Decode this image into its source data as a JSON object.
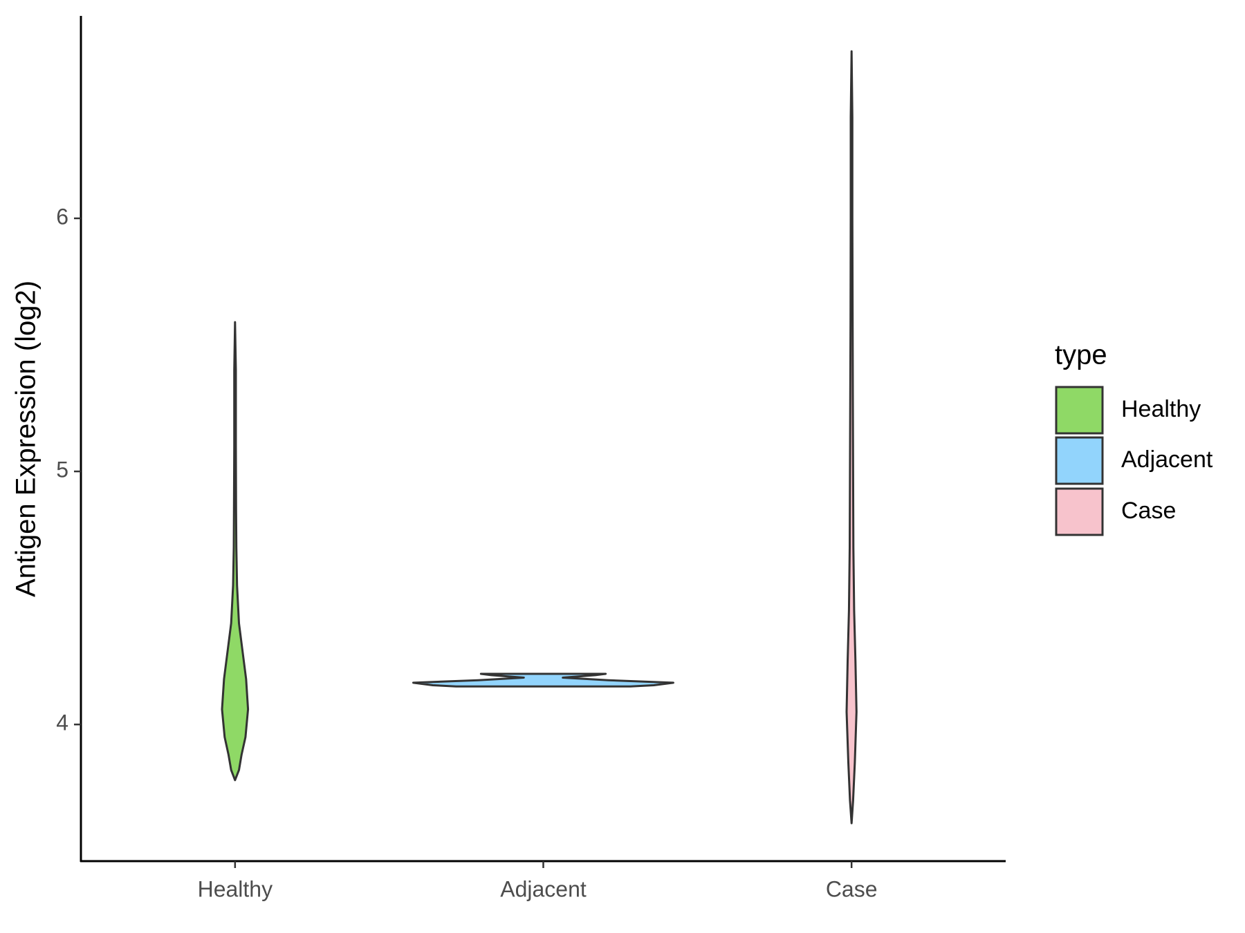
{
  "chart_data": {
    "type": "violin",
    "y_label": "Antigen Expression (log2)",
    "categories": [
      "Healthy",
      "Adjacent",
      "Case"
    ],
    "ylim": [
      3.46,
      6.8
    ],
    "yticks": [
      4,
      5,
      6
    ],
    "legend_title": "type",
    "legend": "right",
    "series": [
      {
        "name": "Healthy",
        "color": "#8fd966",
        "y": [
          3.78,
          3.82,
          3.88,
          3.95,
          4.06,
          4.18,
          4.28,
          4.4,
          4.55,
          4.7,
          4.85,
          5.1,
          5.4,
          5.59
        ],
        "width": [
          0.0,
          0.03,
          0.05,
          0.08,
          0.1,
          0.085,
          0.06,
          0.03,
          0.015,
          0.01,
          0.008,
          0.006,
          0.006,
          0.0
        ]
      },
      {
        "name": "Adjacent",
        "color": "#92d4fc",
        "y": [
          4.15,
          4.155,
          4.165,
          4.175,
          4.185,
          4.195,
          4.2
        ],
        "width": [
          0.67,
          0.85,
          1.0,
          0.5,
          0.15,
          0.4,
          0.48
        ]
      },
      {
        "name": "Case",
        "color": "#f7c3cc",
        "y": [
          3.61,
          3.7,
          3.85,
          4.05,
          4.25,
          4.45,
          4.7,
          5.0,
          5.3,
          5.6,
          6.0,
          6.4,
          6.66
        ],
        "width": [
          0.0,
          0.012,
          0.025,
          0.038,
          0.03,
          0.02,
          0.014,
          0.012,
          0.01,
          0.008,
          0.006,
          0.006,
          0.0
        ]
      }
    ]
  }
}
